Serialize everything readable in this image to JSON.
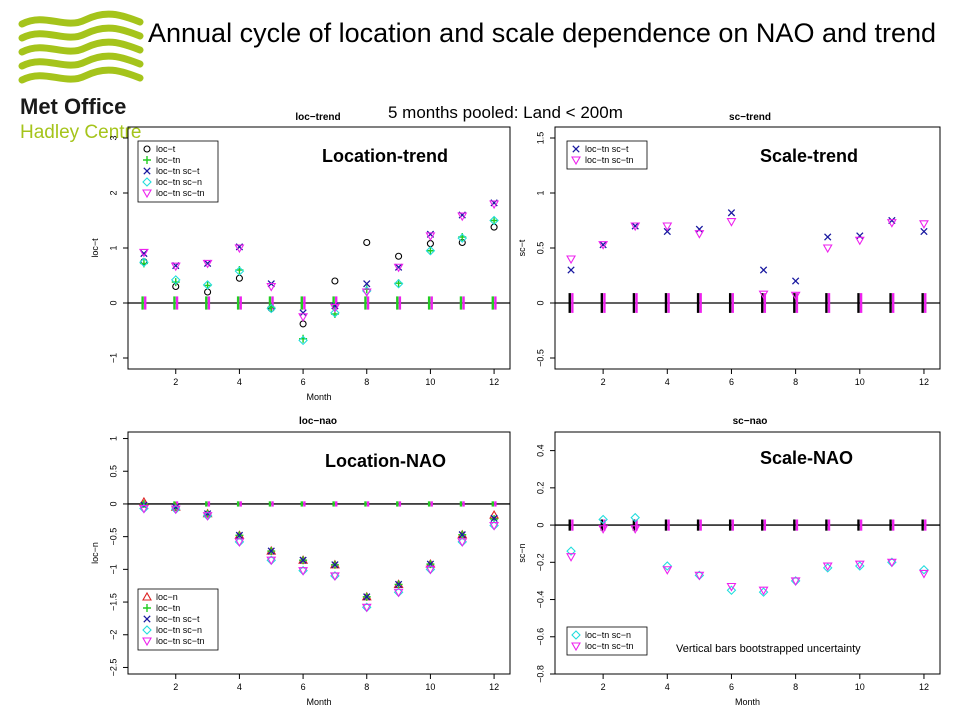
{
  "slide": {
    "title": "Annual cycle of location and scale dependence on NAO and trend",
    "subtitle": "5 months pooled: Land < 200m",
    "logo_line1": "Met Office",
    "logo_line2": "Hadley Centre",
    "note": "Vertical bars bootstrapped uncertainty"
  },
  "colors": {
    "logo_green": "#a5c41b",
    "logo_dark": "#1a1a1a",
    "black": "#000000",
    "green": "#22cc22",
    "navy": "#1a1aa0",
    "cyan": "#22dddd",
    "magenta": "#ee22ee",
    "red": "#dd2222"
  },
  "chart_data": [
    {
      "id": "loc-trend",
      "type": "scatter",
      "title": "loc−trend",
      "big_label": "Location-trend",
      "xlabel": "Month",
      "ylabel": "loc−t",
      "xlim": [
        0.5,
        12.5
      ],
      "ylim": [
        -1.2,
        3.2
      ],
      "xticks": [
        2,
        4,
        6,
        8,
        10,
        12
      ],
      "yticks": [
        -1,
        0,
        1,
        2,
        3
      ],
      "hline": 0,
      "legend_position": "top-left",
      "bars": {
        "low": -0.12,
        "high": 0.12,
        "colors": [
          "#22cc22",
          "#ee22ee"
        ]
      },
      "series": [
        {
          "name": "loc−t",
          "marker": "circle",
          "color": "#000000",
          "values": [
            0.75,
            0.3,
            0.2,
            0.45,
            -0.1,
            -0.38,
            0.4,
            1.1,
            0.85,
            1.08,
            1.1,
            1.38
          ]
        },
        {
          "name": "loc−tn",
          "marker": "plus",
          "color": "#22cc22",
          "values": [
            0.72,
            0.38,
            0.32,
            0.6,
            -0.08,
            -0.65,
            -0.2,
            0.25,
            0.36,
            0.95,
            1.2,
            1.5
          ]
        },
        {
          "name": "loc−tn sc−t",
          "marker": "x",
          "color": "#1a1aa0",
          "values": [
            0.9,
            0.68,
            0.72,
            1.02,
            0.35,
            -0.18,
            -0.05,
            0.35,
            0.65,
            1.25,
            1.6,
            1.82
          ]
        },
        {
          "name": "loc−tn sc−n",
          "marker": "diamond",
          "color": "#22dddd",
          "values": [
            0.74,
            0.42,
            0.33,
            0.58,
            -0.1,
            -0.68,
            -0.18,
            0.22,
            0.35,
            0.95,
            1.18,
            1.5
          ]
        },
        {
          "name": "loc−tn sc−tn",
          "marker": "tri-down",
          "color": "#ee22ee",
          "values": [
            0.92,
            0.67,
            0.72,
            1.0,
            0.3,
            -0.25,
            -0.08,
            0.2,
            0.65,
            1.22,
            1.58,
            1.8
          ]
        }
      ]
    },
    {
      "id": "sc-trend",
      "type": "scatter",
      "title": "sc−trend",
      "big_label": "Scale-trend",
      "xlabel": "",
      "ylabel": "sc−t",
      "xlim": [
        0.5,
        12.5
      ],
      "ylim": [
        -0.6,
        1.6
      ],
      "xticks": [
        2,
        4,
        6,
        8,
        10,
        12
      ],
      "yticks": [
        -0.5,
        0.0,
        0.5,
        1.0,
        1.5
      ],
      "hline": 0,
      "legend_position": "top-left",
      "bars": {
        "low": -0.09,
        "high": 0.09,
        "colors": [
          "#000000",
          "#ee22ee"
        ]
      },
      "series": [
        {
          "name": "loc−tn sc−t",
          "marker": "x",
          "color": "#1a1aa0",
          "values": [
            0.3,
            0.53,
            0.7,
            0.65,
            0.67,
            0.82,
            0.3,
            0.2,
            0.6,
            0.61,
            0.75,
            0.65
          ]
        },
        {
          "name": "loc−tn sc−tn",
          "marker": "tri-down",
          "color": "#ee22ee",
          "values": [
            0.4,
            0.53,
            0.7,
            0.7,
            0.63,
            0.74,
            0.08,
            0.07,
            0.5,
            0.57,
            0.73,
            0.72
          ]
        }
      ]
    },
    {
      "id": "loc-nao",
      "type": "scatter",
      "title": "loc−nao",
      "big_label": "Location-NAO",
      "xlabel": "Month",
      "ylabel": "loc−n",
      "xlim": [
        0.5,
        12.5
      ],
      "ylim": [
        -2.6,
        1.1
      ],
      "xticks": [
        2,
        4,
        6,
        8,
        10,
        12
      ],
      "yticks": [
        -2.5,
        -2.0,
        -1.5,
        -1.0,
        -0.5,
        0.0,
        0.5,
        1.0
      ],
      "hline": 0,
      "legend_position": "bottom-left",
      "bars": {
        "low": -0.04,
        "high": 0.04,
        "colors": [
          "#22cc22",
          "#ee22ee"
        ]
      },
      "series": [
        {
          "name": "loc−n",
          "marker": "tri-up",
          "color": "#dd2222",
          "values": [
            0.03,
            -0.05,
            -0.15,
            -0.48,
            -0.72,
            -0.86,
            -0.93,
            -1.42,
            -1.23,
            -0.92,
            -0.47,
            -0.17
          ]
        },
        {
          "name": "loc−tn",
          "marker": "plus",
          "color": "#22cc22",
          "values": [
            0.0,
            -0.05,
            -0.15,
            -0.48,
            -0.72,
            -0.86,
            -0.93,
            -1.42,
            -1.23,
            -0.92,
            -0.47,
            -0.23
          ]
        },
        {
          "name": "loc−tn sc−t",
          "marker": "x",
          "color": "#1a1aa0",
          "values": [
            -0.02,
            -0.05,
            -0.15,
            -0.48,
            -0.72,
            -0.86,
            -0.93,
            -1.42,
            -1.23,
            -0.92,
            -0.47,
            -0.22
          ]
        },
        {
          "name": "loc−tn sc−n",
          "marker": "diamond",
          "color": "#22dddd",
          "values": [
            -0.07,
            -0.08,
            -0.18,
            -0.58,
            -0.86,
            -1.02,
            -1.1,
            -1.58,
            -1.35,
            -1.0,
            -0.58,
            -0.33
          ]
        },
        {
          "name": "loc−tn sc−tn",
          "marker": "tri-down",
          "color": "#ee22ee",
          "values": [
            -0.07,
            -0.08,
            -0.18,
            -0.58,
            -0.86,
            -1.02,
            -1.1,
            -1.58,
            -1.35,
            -1.0,
            -0.58,
            -0.33
          ]
        }
      ]
    },
    {
      "id": "sc-nao",
      "type": "scatter",
      "title": "sc−nao",
      "big_label": "Scale-NAO",
      "xlabel": "Month",
      "ylabel": "sc−n",
      "xlim": [
        0.5,
        12.5
      ],
      "ylim": [
        -0.8,
        0.5
      ],
      "xticks": [
        2,
        4,
        6,
        8,
        10,
        12
      ],
      "yticks": [
        -0.8,
        -0.6,
        -0.4,
        -0.2,
        0.0,
        0.2,
        0.4
      ],
      "hline": 0,
      "legend_position": "bottom-left",
      "bars": {
        "low": -0.03,
        "high": 0.03,
        "colors": [
          "#000000",
          "#ee22ee"
        ]
      },
      "series": [
        {
          "name": "loc−tn sc−n",
          "marker": "diamond",
          "color": "#22dddd",
          "values": [
            -0.14,
            0.03,
            0.04,
            -0.22,
            -0.27,
            -0.35,
            -0.36,
            -0.3,
            -0.23,
            -0.22,
            -0.2,
            -0.24
          ]
        },
        {
          "name": "loc−tn sc−tn",
          "marker": "tri-down",
          "color": "#ee22ee",
          "values": [
            -0.17,
            -0.02,
            -0.02,
            -0.24,
            -0.27,
            -0.33,
            -0.35,
            -0.3,
            -0.22,
            -0.21,
            -0.2,
            -0.26
          ]
        }
      ]
    }
  ]
}
